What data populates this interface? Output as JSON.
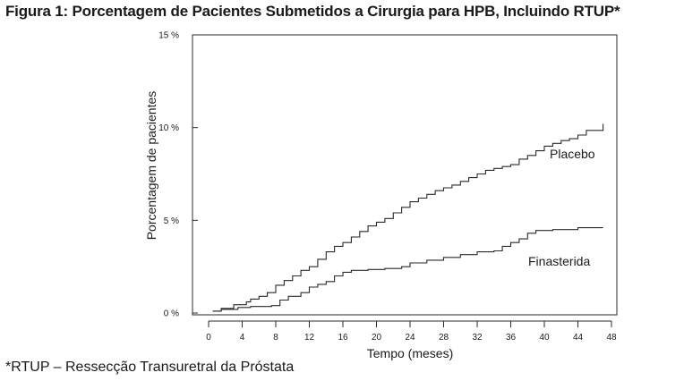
{
  "figure": {
    "title": "Figura 1: Porcentagem de Pacientes Submetidos a Cirurgia para HPB, Incluindo RTUP*",
    "footnote": "*RTUP – Ressecção Transuretral da Próstata"
  },
  "chart_data": {
    "type": "line",
    "xlabel": "Tempo (meses)",
    "ylabel": "Porcentagem de pacientes",
    "xlim": [
      0,
      48
    ],
    "ylim": [
      0,
      15
    ],
    "x_ticks": [
      0,
      4,
      8,
      12,
      16,
      20,
      24,
      28,
      32,
      36,
      40,
      44,
      48
    ],
    "x_tick_labels": [
      "0",
      "4",
      "8",
      "12",
      "16",
      "20",
      "24",
      "28",
      "32",
      "36",
      "40",
      "44",
      "48"
    ],
    "y_ticks": [
      0,
      5,
      10,
      15
    ],
    "y_tick_labels": [
      "0 %",
      "5 %",
      "10 %",
      "15 %"
    ],
    "grid": false,
    "legend": "none (series labeled directly on chart)",
    "line_color": "#2a2a2a",
    "series": [
      {
        "name": "Placebo",
        "step": true,
        "x": [
          0.5,
          1.5,
          3.0,
          4.5,
          5.0,
          6.0,
          7.0,
          8.0,
          9.0,
          10.0,
          11.0,
          12.0,
          13.0,
          14.0,
          15.0,
          16.0,
          17.0,
          18.0,
          19.0,
          20.0,
          21.0,
          22.0,
          23.0,
          24.0,
          25.0,
          26.0,
          27.0,
          28.0,
          29.0,
          30.0,
          31.0,
          32.0,
          33.0,
          34.0,
          35.0,
          36.0,
          37.0,
          38.0,
          39.0,
          40.0,
          41.0,
          42.0,
          43.0,
          44.0,
          45.0,
          47.0
        ],
        "y": [
          0.1,
          0.25,
          0.45,
          0.6,
          0.75,
          0.9,
          1.1,
          1.5,
          1.75,
          2.0,
          2.3,
          2.5,
          2.9,
          3.3,
          3.6,
          3.8,
          4.1,
          4.4,
          4.7,
          4.9,
          5.1,
          5.4,
          5.7,
          6.0,
          6.2,
          6.4,
          6.6,
          6.75,
          6.9,
          7.1,
          7.3,
          7.5,
          7.7,
          7.8,
          7.9,
          8.0,
          8.3,
          8.5,
          8.75,
          9.0,
          9.15,
          9.3,
          9.4,
          9.6,
          9.85,
          10.2
        ]
      },
      {
        "name": "Finasterida",
        "step": true,
        "x": [
          0.5,
          1.5,
          3.5,
          5.0,
          7.5,
          8.5,
          9.5,
          11.0,
          12.0,
          13.0,
          14.0,
          15.0,
          16.0,
          17.0,
          19.0,
          21.0,
          23.0,
          24.0,
          26.0,
          28.0,
          30.0,
          32.0,
          34.0,
          35.0,
          36.0,
          37.0,
          38.0,
          39.0,
          41.0,
          44.0,
          47.0
        ],
        "y": [
          0.1,
          0.2,
          0.3,
          0.35,
          0.4,
          0.7,
          0.9,
          1.1,
          1.4,
          1.55,
          1.7,
          2.0,
          2.2,
          2.3,
          2.35,
          2.4,
          2.5,
          2.7,
          2.85,
          3.0,
          3.15,
          3.3,
          3.35,
          3.6,
          3.8,
          4.0,
          4.3,
          4.45,
          4.5,
          4.6,
          4.6
        ]
      }
    ]
  }
}
